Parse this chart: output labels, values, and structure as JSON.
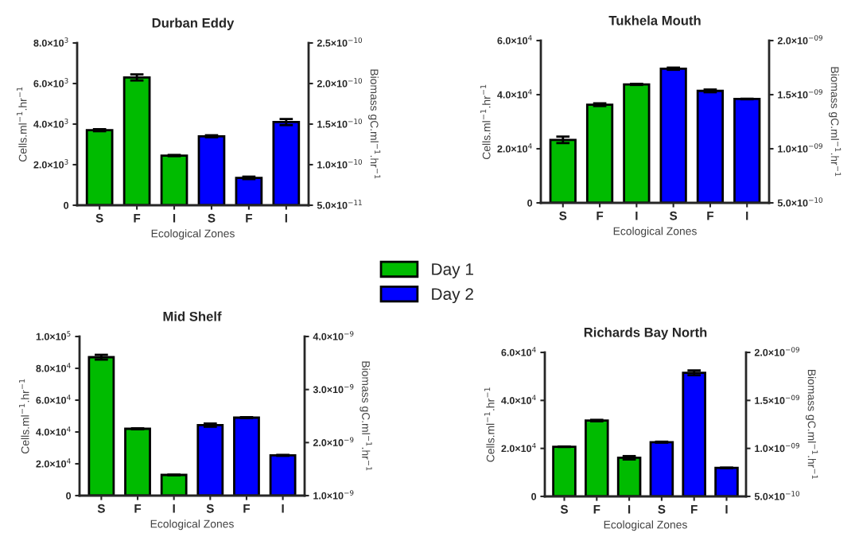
{
  "chart_data": [
    {
      "type": "bar",
      "title": "Durban Eddy",
      "xlabel": "Ecological Zones",
      "ylabel": "Cells.ml$^{−1}$.hr$^{−1}$",
      "y2label": "Biomass gC.ml$^{−1}$.hr$^{−1}$",
      "categories": [
        "S",
        "F",
        "I",
        "S",
        "F",
        "I"
      ],
      "series": [
        {
          "name": "Day 1",
          "color": "#00bb00",
          "values": [
            3700,
            6300,
            2450,
            null,
            null,
            null
          ],
          "errors": [
            50,
            150,
            30,
            null,
            null,
            null
          ]
        },
        {
          "name": "Day 2",
          "color": "#0000ff",
          "values": [
            null,
            null,
            null,
            3400,
            1350,
            4100
          ],
          "errors": [
            null,
            null,
            null,
            50,
            60,
            150
          ]
        }
      ],
      "ylim": [
        0,
        8000
      ],
      "yticks": [
        0,
        {
          "value": 2000,
          "label": "2.0×10$^{3}$"
        },
        {
          "value": 4000,
          "label": "4.0×10$^{3}$"
        },
        {
          "value": 6000,
          "label": "6.0×10$^{3}$"
        },
        {
          "value": 8000,
          "label": "8.0×10$^{3}$"
        }
      ],
      "y2lim": [
        5e-11,
        2.5e-10
      ],
      "y2ticks": [
        {
          "value": 5e-11,
          "label": "5.0×10$^{−11}$"
        },
        {
          "value": 1e-10,
          "label": "1.0×10$^{−10}$"
        },
        {
          "value": 1.5e-10,
          "label": "1.5×10$^{−10}$"
        },
        {
          "value": 2e-10,
          "label": "2.0×10$^{−10}$"
        },
        {
          "value": 2.5e-10,
          "label": "2.5×10$^{−10}$"
        }
      ],
      "legend": "bottom right"
    },
    {
      "type": "bar",
      "title": "Tukhela Mouth",
      "xlabel": "Ecological Zones",
      "ylabel": "Cells.ml$^{−1}$.hr$^{−1}$",
      "y2label": "Biomass gC.ml$^{−1}$.hr$^{−1}$",
      "categories": [
        "S",
        "F",
        "I",
        "S",
        "F",
        "I"
      ],
      "series": [
        {
          "color": "#00bb00",
          "values": [
            23300,
            36300,
            43800,
            null,
            null,
            null
          ],
          "errors": [
            1200,
            500,
            200,
            null,
            null,
            null
          ]
        },
        {
          "color": "#0000ff",
          "values": [
            null,
            null,
            null,
            49600,
            41400,
            38400
          ],
          "errors": [
            null,
            null,
            null,
            400,
            500,
            100
          ]
        }
      ],
      "ylim": [
        0,
        60000
      ],
      "yticks": [
        0,
        {
          "value": 20000,
          "label": "2.0×10$^{4}$"
        },
        {
          "value": 40000,
          "label": "4.0×10$^{4}$"
        },
        {
          "value": 60000,
          "label": "6.0×10$^{4}$"
        }
      ],
      "y2lim": [
        5e-10,
        2e-09
      ],
      "y2ticks": [
        {
          "value": 5e-10,
          "label": "5.0×10$^{−10}$"
        },
        {
          "value": 1e-09,
          "label": "1.0×10$^{−09}$"
        },
        {
          "value": 1.5e-09,
          "label": "1.5×10$^{−09}$"
        },
        {
          "value": 2e-09,
          "label": "2.0×10$^{−09}$"
        }
      ]
    },
    {
      "type": "bar",
      "title": "Mid Shelf",
      "xlabel": "Ecological Zones",
      "ylabel": "Cells.ml$^{−1}$.hr$^{−1}$",
      "y2label": "Biomass gC.ml$^{−1}$.hr$^{−1}$",
      "categories": [
        "S",
        "F",
        "I",
        "S",
        "F",
        "I"
      ],
      "series": [
        {
          "color": "#00bb00",
          "values": [
            87000,
            42000,
            13000,
            null,
            null,
            null
          ],
          "errors": [
            1500,
            300,
            200,
            null,
            null,
            null
          ]
        },
        {
          "color": "#0000ff",
          "values": [
            null,
            null,
            null,
            44300,
            49000,
            25300
          ],
          "errors": [
            null,
            null,
            null,
            1000,
            300,
            300
          ]
        }
      ],
      "ylim": [
        0,
        100000
      ],
      "yticks": [
        0,
        {
          "value": 20000,
          "label": "2.0×10$^{4}$"
        },
        {
          "value": 40000,
          "label": "4.0×10$^{4}$"
        },
        {
          "value": 60000,
          "label": "6.0×10$^{4}$"
        },
        {
          "value": 80000,
          "label": "8.0×10$^{4}$"
        },
        {
          "value": 100000,
          "label": "1.0×10$^{5}$"
        }
      ],
      "y2lim": [
        1e-09,
        4e-09
      ],
      "y2ticks": [
        {
          "value": 1e-09,
          "label": "1.0×10$^{−9}$"
        },
        {
          "value": 2e-09,
          "label": "2.0×10$^{−9}$"
        },
        {
          "value": 3e-09,
          "label": "3.0×10$^{−9}$"
        },
        {
          "value": 4e-09,
          "label": "4.0×10$^{−9}$"
        }
      ]
    },
    {
      "type": "bar",
      "title": "Richards Bay North",
      "xlabel": "Ecological Zones",
      "ylabel": "Cells.ml$^{−1}$.hr$^{−1}$",
      "y2label": "Biomass gC.ml$^{−1}$.hr$^{−1}$",
      "categories": [
        "S",
        "F",
        "I",
        "S",
        "F",
        "I"
      ],
      "series": [
        {
          "color": "#00bb00",
          "values": [
            20700,
            31600,
            16100,
            null,
            null,
            null
          ],
          "errors": [
            100,
            300,
            700,
            null,
            null,
            null
          ]
        },
        {
          "color": "#0000ff",
          "values": [
            null,
            null,
            null,
            22600,
            51500,
            11900
          ],
          "errors": [
            null,
            null,
            null,
            200,
            1000,
            100
          ]
        }
      ],
      "ylim": [
        0,
        60000
      ],
      "yticks": [
        0,
        {
          "value": 20000,
          "label": "2.0×10$^{4}$"
        },
        {
          "value": 40000,
          "label": "4.0×10$^{4}$"
        },
        {
          "value": 60000,
          "label": "6.0×10$^{4}$"
        }
      ],
      "y2lim": [
        5e-10,
        2e-09
      ],
      "y2ticks": [
        {
          "value": 5e-10,
          "label": "5.0×10$^{−10}$"
        },
        {
          "value": 1e-09,
          "label": "1.0×10$^{−09}$"
        },
        {
          "value": 1.5e-09,
          "label": "1.5×10$^{−09}$"
        },
        {
          "value": 2e-09,
          "label": "2.0×10$^{−09}$"
        }
      ]
    }
  ]
}
